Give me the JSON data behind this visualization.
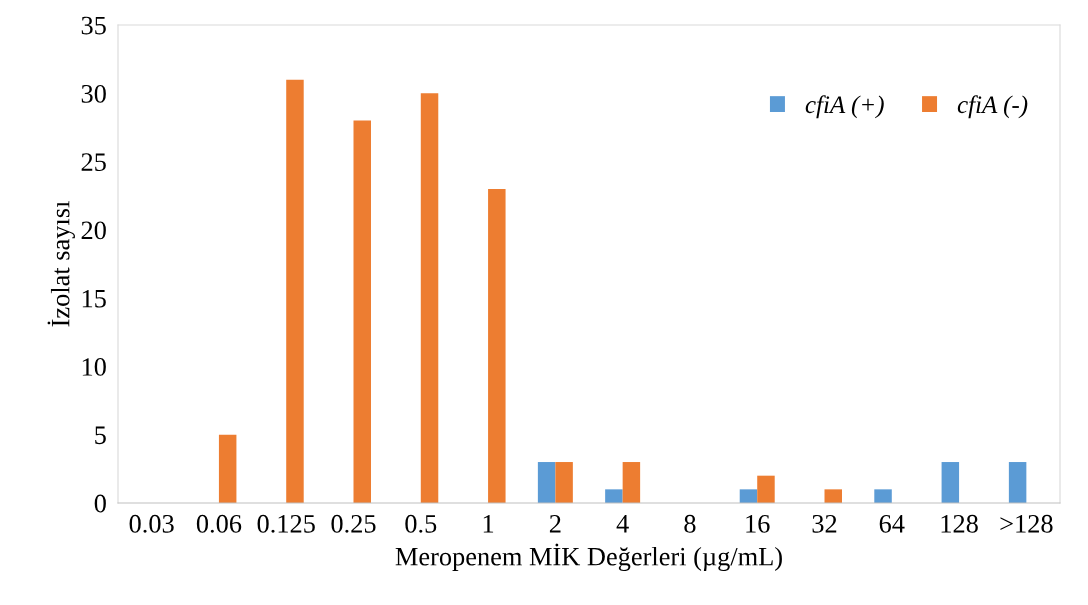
{
  "chart_data": {
    "type": "bar",
    "xlabel": "Meropenem MİK Değerleri (µg/mL)",
    "ylabel": "İzolat sayısı",
    "categories": [
      "0.03",
      "0.06",
      "0.125",
      "0.25",
      "0.5",
      "1",
      "2",
      "4",
      "8",
      "16",
      "32",
      "64",
      "128",
      ">128"
    ],
    "series": [
      {
        "name": "cfiA (+)",
        "color": "#5b9bd5",
        "values": [
          0,
          0,
          0,
          0,
          0,
          0,
          3,
          1,
          0,
          1,
          0,
          1,
          3,
          3
        ]
      },
      {
        "name": "cfiA (-)",
        "color": "#ed7d31",
        "values": [
          0,
          5,
          31,
          28,
          30,
          23,
          3,
          3,
          0,
          2,
          1,
          0,
          0,
          0
        ]
      }
    ],
    "ylim": [
      0,
      35
    ],
    "yticks": [
      0,
      5,
      10,
      15,
      20,
      25,
      30,
      35
    ],
    "grid": false,
    "legend": "top right"
  }
}
